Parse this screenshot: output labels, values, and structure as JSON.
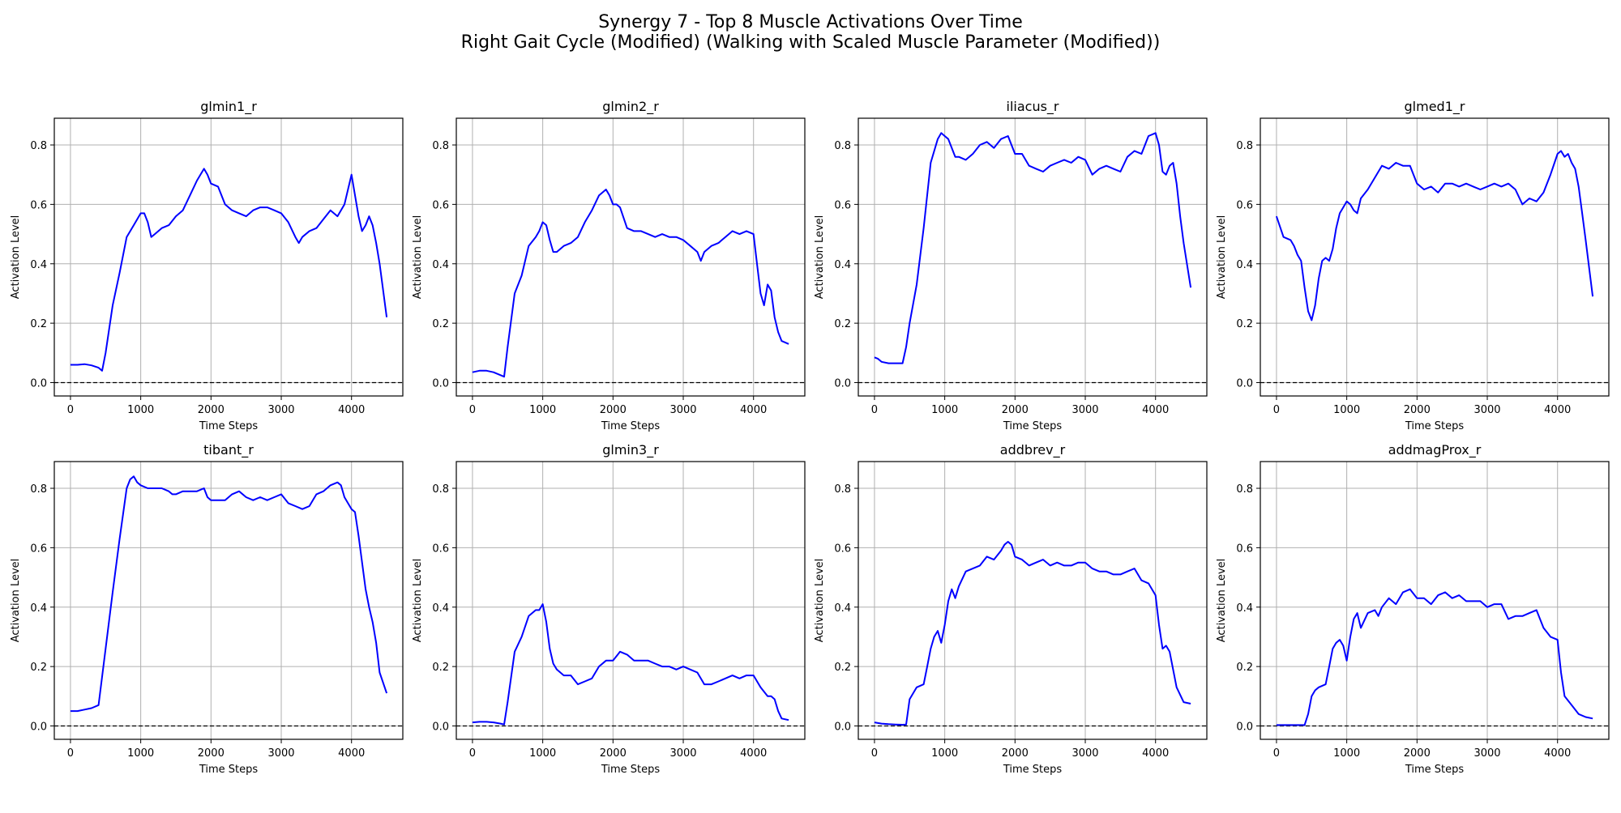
{
  "figure": {
    "title_line1": "Synergy 7 - Top 8 Muscle Activations Over Time",
    "title_line2": "Right Gait Cycle (Modified) (Walking with Scaled Muscle Parameter (Modified))"
  },
  "colors": {
    "line": "#0000ff",
    "grid": "#b0b0b0",
    "zero_line": "#000000"
  },
  "chart_data": [
    {
      "type": "line",
      "title": "glmin1_r",
      "xlabel": "Time Steps",
      "ylabel": "Activation Level",
      "xlim": [
        -230,
        4730
      ],
      "ylim": [
        -0.045,
        0.89
      ],
      "xticks": [
        0,
        1000,
        2000,
        3000,
        4000
      ],
      "yticks": [
        0.0,
        0.2,
        0.4,
        0.6,
        0.8
      ],
      "grid": true,
      "zero_line": true,
      "x": [
        0,
        100,
        200,
        300,
        400,
        450,
        500,
        600,
        700,
        800,
        900,
        1000,
        1050,
        1100,
        1150,
        1200,
        1300,
        1400,
        1500,
        1600,
        1700,
        1800,
        1900,
        1950,
        2000,
        2100,
        2200,
        2300,
        2400,
        2500,
        2600,
        2700,
        2800,
        2900,
        3000,
        3100,
        3200,
        3250,
        3300,
        3400,
        3500,
        3600,
        3700,
        3800,
        3900,
        4000,
        4100,
        4150,
        4200,
        4250,
        4300,
        4350,
        4400,
        4500
      ],
      "y": [
        0.06,
        0.06,
        0.062,
        0.058,
        0.05,
        0.04,
        0.1,
        0.26,
        0.37,
        0.49,
        0.53,
        0.57,
        0.57,
        0.54,
        0.49,
        0.5,
        0.52,
        0.53,
        0.56,
        0.58,
        0.63,
        0.68,
        0.72,
        0.7,
        0.67,
        0.66,
        0.6,
        0.58,
        0.57,
        0.56,
        0.58,
        0.59,
        0.59,
        0.58,
        0.57,
        0.54,
        0.49,
        0.47,
        0.49,
        0.51,
        0.52,
        0.55,
        0.58,
        0.56,
        0.6,
        0.7,
        0.56,
        0.51,
        0.53,
        0.56,
        0.53,
        0.47,
        0.4,
        0.22
      ]
    },
    {
      "type": "line",
      "title": "glmin2_r",
      "xlabel": "Time Steps",
      "ylabel": "Activation Level",
      "xlim": [
        -230,
        4730
      ],
      "ylim": [
        -0.045,
        0.89
      ],
      "xticks": [
        0,
        1000,
        2000,
        3000,
        4000
      ],
      "yticks": [
        0.0,
        0.2,
        0.4,
        0.6,
        0.8
      ],
      "grid": true,
      "zero_line": true,
      "x": [
        0,
        100,
        200,
        300,
        400,
        450,
        500,
        600,
        700,
        800,
        900,
        950,
        1000,
        1050,
        1100,
        1150,
        1200,
        1300,
        1400,
        1500,
        1600,
        1700,
        1800,
        1900,
        1950,
        2000,
        2050,
        2100,
        2200,
        2300,
        2400,
        2500,
        2600,
        2700,
        2800,
        2900,
        3000,
        3100,
        3200,
        3250,
        3300,
        3400,
        3500,
        3600,
        3700,
        3800,
        3900,
        4000,
        4050,
        4100,
        4150,
        4200,
        4250,
        4300,
        4350,
        4400,
        4500
      ],
      "y": [
        0.035,
        0.04,
        0.04,
        0.035,
        0.025,
        0.02,
        0.12,
        0.3,
        0.36,
        0.46,
        0.49,
        0.51,
        0.54,
        0.53,
        0.48,
        0.44,
        0.44,
        0.46,
        0.47,
        0.49,
        0.54,
        0.58,
        0.63,
        0.65,
        0.63,
        0.6,
        0.6,
        0.59,
        0.52,
        0.51,
        0.51,
        0.5,
        0.49,
        0.5,
        0.49,
        0.49,
        0.48,
        0.46,
        0.44,
        0.41,
        0.44,
        0.46,
        0.47,
        0.49,
        0.51,
        0.5,
        0.51,
        0.5,
        0.4,
        0.3,
        0.26,
        0.33,
        0.31,
        0.22,
        0.17,
        0.14,
        0.13
      ]
    },
    {
      "type": "line",
      "title": "iliacus_r",
      "xlabel": "Time Steps",
      "ylabel": "Activation Level",
      "xlim": [
        -230,
        4730
      ],
      "ylim": [
        -0.045,
        0.89
      ],
      "xticks": [
        0,
        1000,
        2000,
        3000,
        4000
      ],
      "yticks": [
        0.0,
        0.2,
        0.4,
        0.6,
        0.8
      ],
      "grid": true,
      "zero_line": true,
      "x": [
        0,
        50,
        100,
        200,
        300,
        400,
        450,
        500,
        600,
        700,
        800,
        900,
        950,
        1000,
        1050,
        1100,
        1150,
        1200,
        1300,
        1400,
        1500,
        1600,
        1700,
        1800,
        1900,
        2000,
        2100,
        2200,
        2300,
        2400,
        2500,
        2600,
        2700,
        2800,
        2900,
        3000,
        3100,
        3200,
        3300,
        3400,
        3500,
        3600,
        3700,
        3800,
        3900,
        4000,
        4050,
        4100,
        4150,
        4200,
        4250,
        4300,
        4350,
        4400,
        4500
      ],
      "y": [
        0.085,
        0.08,
        0.07,
        0.065,
        0.065,
        0.065,
        0.12,
        0.2,
        0.33,
        0.52,
        0.74,
        0.82,
        0.84,
        0.83,
        0.82,
        0.79,
        0.76,
        0.76,
        0.75,
        0.77,
        0.8,
        0.81,
        0.79,
        0.82,
        0.83,
        0.77,
        0.77,
        0.73,
        0.72,
        0.71,
        0.73,
        0.74,
        0.75,
        0.74,
        0.76,
        0.75,
        0.7,
        0.72,
        0.73,
        0.72,
        0.71,
        0.76,
        0.78,
        0.77,
        0.83,
        0.84,
        0.8,
        0.71,
        0.7,
        0.73,
        0.74,
        0.67,
        0.56,
        0.47,
        0.32
      ]
    },
    {
      "type": "line",
      "title": "glmed1_r",
      "xlabel": "Time Steps",
      "ylabel": "Activation Level",
      "xlim": [
        -230,
        4730
      ],
      "ylim": [
        -0.045,
        0.89
      ],
      "xticks": [
        0,
        1000,
        2000,
        3000,
        4000
      ],
      "yticks": [
        0.0,
        0.2,
        0.4,
        0.6,
        0.8
      ],
      "grid": true,
      "zero_line": true,
      "x": [
        0,
        100,
        200,
        250,
        300,
        350,
        400,
        450,
        500,
        550,
        600,
        650,
        700,
        750,
        800,
        850,
        900,
        950,
        1000,
        1050,
        1100,
        1150,
        1200,
        1300,
        1400,
        1500,
        1600,
        1700,
        1800,
        1900,
        2000,
        2100,
        2200,
        2300,
        2400,
        2500,
        2600,
        2700,
        2800,
        2900,
        3000,
        3100,
        3200,
        3300,
        3400,
        3500,
        3600,
        3700,
        3800,
        3900,
        4000,
        4050,
        4100,
        4150,
        4200,
        4250,
        4300,
        4350,
        4400,
        4500
      ],
      "y": [
        0.56,
        0.49,
        0.48,
        0.46,
        0.43,
        0.41,
        0.32,
        0.24,
        0.21,
        0.26,
        0.35,
        0.41,
        0.42,
        0.41,
        0.45,
        0.52,
        0.57,
        0.59,
        0.61,
        0.6,
        0.58,
        0.57,
        0.62,
        0.65,
        0.69,
        0.73,
        0.72,
        0.74,
        0.73,
        0.73,
        0.67,
        0.65,
        0.66,
        0.64,
        0.67,
        0.67,
        0.66,
        0.67,
        0.66,
        0.65,
        0.66,
        0.67,
        0.66,
        0.67,
        0.65,
        0.6,
        0.62,
        0.61,
        0.64,
        0.7,
        0.77,
        0.78,
        0.76,
        0.77,
        0.74,
        0.72,
        0.66,
        0.57,
        0.48,
        0.29
      ]
    },
    {
      "type": "line",
      "title": "tibant_r",
      "xlabel": "Time Steps",
      "ylabel": "Activation Level",
      "xlim": [
        -230,
        4730
      ],
      "ylim": [
        -0.045,
        0.89
      ],
      "xticks": [
        0,
        1000,
        2000,
        3000,
        4000
      ],
      "yticks": [
        0.0,
        0.2,
        0.4,
        0.6,
        0.8
      ],
      "grid": true,
      "zero_line": true,
      "x": [
        0,
        100,
        200,
        300,
        400,
        500,
        600,
        700,
        800,
        850,
        900,
        950,
        1000,
        1100,
        1200,
        1300,
        1400,
        1450,
        1500,
        1600,
        1700,
        1800,
        1900,
        1950,
        2000,
        2100,
        2200,
        2300,
        2400,
        2500,
        2600,
        2700,
        2800,
        2900,
        3000,
        3100,
        3200,
        3300,
        3400,
        3500,
        3600,
        3700,
        3800,
        3850,
        3900,
        4000,
        4050,
        4100,
        4200,
        4250,
        4300,
        4350,
        4400,
        4500
      ],
      "y": [
        0.05,
        0.05,
        0.055,
        0.06,
        0.07,
        0.26,
        0.45,
        0.63,
        0.8,
        0.83,
        0.84,
        0.82,
        0.81,
        0.8,
        0.8,
        0.8,
        0.79,
        0.78,
        0.78,
        0.79,
        0.79,
        0.79,
        0.8,
        0.77,
        0.76,
        0.76,
        0.76,
        0.78,
        0.79,
        0.77,
        0.76,
        0.77,
        0.76,
        0.77,
        0.78,
        0.75,
        0.74,
        0.73,
        0.74,
        0.78,
        0.79,
        0.81,
        0.82,
        0.81,
        0.77,
        0.73,
        0.72,
        0.64,
        0.46,
        0.4,
        0.35,
        0.28,
        0.18,
        0.11
      ]
    },
    {
      "type": "line",
      "title": "glmin3_r",
      "xlabel": "Time Steps",
      "ylabel": "Activation Level",
      "xlim": [
        -230,
        4730
      ],
      "ylim": [
        -0.045,
        0.89
      ],
      "xticks": [
        0,
        1000,
        2000,
        3000,
        4000
      ],
      "yticks": [
        0.0,
        0.2,
        0.4,
        0.6,
        0.8
      ],
      "grid": true,
      "zero_line": true,
      "x": [
        0,
        100,
        200,
        300,
        400,
        450,
        500,
        600,
        700,
        800,
        900,
        950,
        1000,
        1050,
        1100,
        1150,
        1200,
        1300,
        1400,
        1500,
        1600,
        1700,
        1800,
        1900,
        2000,
        2100,
        2200,
        2300,
        2400,
        2500,
        2600,
        2700,
        2800,
        2900,
        3000,
        3100,
        3200,
        3300,
        3400,
        3500,
        3600,
        3700,
        3800,
        3900,
        4000,
        4100,
        4200,
        4250,
        4300,
        4350,
        4400,
        4500
      ],
      "y": [
        0.012,
        0.014,
        0.014,
        0.012,
        0.008,
        0.005,
        0.08,
        0.25,
        0.3,
        0.37,
        0.39,
        0.39,
        0.41,
        0.35,
        0.26,
        0.21,
        0.19,
        0.17,
        0.17,
        0.14,
        0.15,
        0.16,
        0.2,
        0.22,
        0.22,
        0.25,
        0.24,
        0.22,
        0.22,
        0.22,
        0.21,
        0.2,
        0.2,
        0.19,
        0.2,
        0.19,
        0.18,
        0.14,
        0.14,
        0.15,
        0.16,
        0.17,
        0.16,
        0.17,
        0.17,
        0.13,
        0.1,
        0.1,
        0.09,
        0.05,
        0.025,
        0.02
      ]
    },
    {
      "type": "line",
      "title": "addbrev_r",
      "xlabel": "Time Steps",
      "ylabel": "Activation Level",
      "xlim": [
        -230,
        4730
      ],
      "ylim": [
        -0.045,
        0.89
      ],
      "xticks": [
        0,
        1000,
        2000,
        3000,
        4000
      ],
      "yticks": [
        0.0,
        0.2,
        0.4,
        0.6,
        0.8
      ],
      "grid": true,
      "zero_line": true,
      "x": [
        0,
        100,
        200,
        300,
        400,
        450,
        500,
        600,
        700,
        750,
        800,
        850,
        900,
        950,
        1000,
        1050,
        1100,
        1150,
        1200,
        1300,
        1400,
        1500,
        1600,
        1700,
        1800,
        1850,
        1900,
        1950,
        2000,
        2100,
        2200,
        2300,
        2400,
        2500,
        2600,
        2700,
        2800,
        2900,
        3000,
        3100,
        3200,
        3300,
        3400,
        3500,
        3600,
        3700,
        3800,
        3900,
        4000,
        4050,
        4100,
        4150,
        4200,
        4300,
        4400,
        4500
      ],
      "y": [
        0.012,
        0.008,
        0.006,
        0.005,
        0.004,
        0.005,
        0.09,
        0.13,
        0.14,
        0.2,
        0.26,
        0.3,
        0.32,
        0.28,
        0.34,
        0.42,
        0.46,
        0.43,
        0.47,
        0.52,
        0.53,
        0.54,
        0.57,
        0.56,
        0.59,
        0.61,
        0.62,
        0.61,
        0.57,
        0.56,
        0.54,
        0.55,
        0.56,
        0.54,
        0.55,
        0.54,
        0.54,
        0.55,
        0.55,
        0.53,
        0.52,
        0.52,
        0.51,
        0.51,
        0.52,
        0.53,
        0.49,
        0.48,
        0.44,
        0.34,
        0.26,
        0.27,
        0.25,
        0.13,
        0.08,
        0.075
      ]
    },
    {
      "type": "line",
      "title": "addmagProx_r",
      "xlabel": "Time Steps",
      "ylabel": "Activation Level",
      "xlim": [
        -230,
        4730
      ],
      "ylim": [
        -0.045,
        0.89
      ],
      "xticks": [
        0,
        1000,
        2000,
        3000,
        4000
      ],
      "yticks": [
        0.0,
        0.2,
        0.4,
        0.6,
        0.8
      ],
      "grid": true,
      "zero_line": true,
      "x": [
        0,
        100,
        200,
        300,
        400,
        450,
        500,
        550,
        600,
        700,
        750,
        800,
        850,
        900,
        950,
        1000,
        1050,
        1100,
        1150,
        1200,
        1300,
        1400,
        1450,
        1500,
        1600,
        1700,
        1800,
        1900,
        2000,
        2100,
        2200,
        2300,
        2400,
        2500,
        2600,
        2700,
        2800,
        2900,
        3000,
        3100,
        3200,
        3300,
        3400,
        3500,
        3600,
        3700,
        3800,
        3900,
        4000,
        4050,
        4100,
        4200,
        4300,
        4400,
        4500
      ],
      "y": [
        0.003,
        0.003,
        0.003,
        0.003,
        0.003,
        0.04,
        0.1,
        0.12,
        0.13,
        0.14,
        0.2,
        0.26,
        0.28,
        0.29,
        0.27,
        0.22,
        0.3,
        0.36,
        0.38,
        0.33,
        0.38,
        0.39,
        0.37,
        0.4,
        0.43,
        0.41,
        0.45,
        0.46,
        0.43,
        0.43,
        0.41,
        0.44,
        0.45,
        0.43,
        0.44,
        0.42,
        0.42,
        0.42,
        0.4,
        0.41,
        0.41,
        0.36,
        0.37,
        0.37,
        0.38,
        0.39,
        0.33,
        0.3,
        0.29,
        0.18,
        0.1,
        0.07,
        0.04,
        0.03,
        0.025
      ]
    }
  ]
}
